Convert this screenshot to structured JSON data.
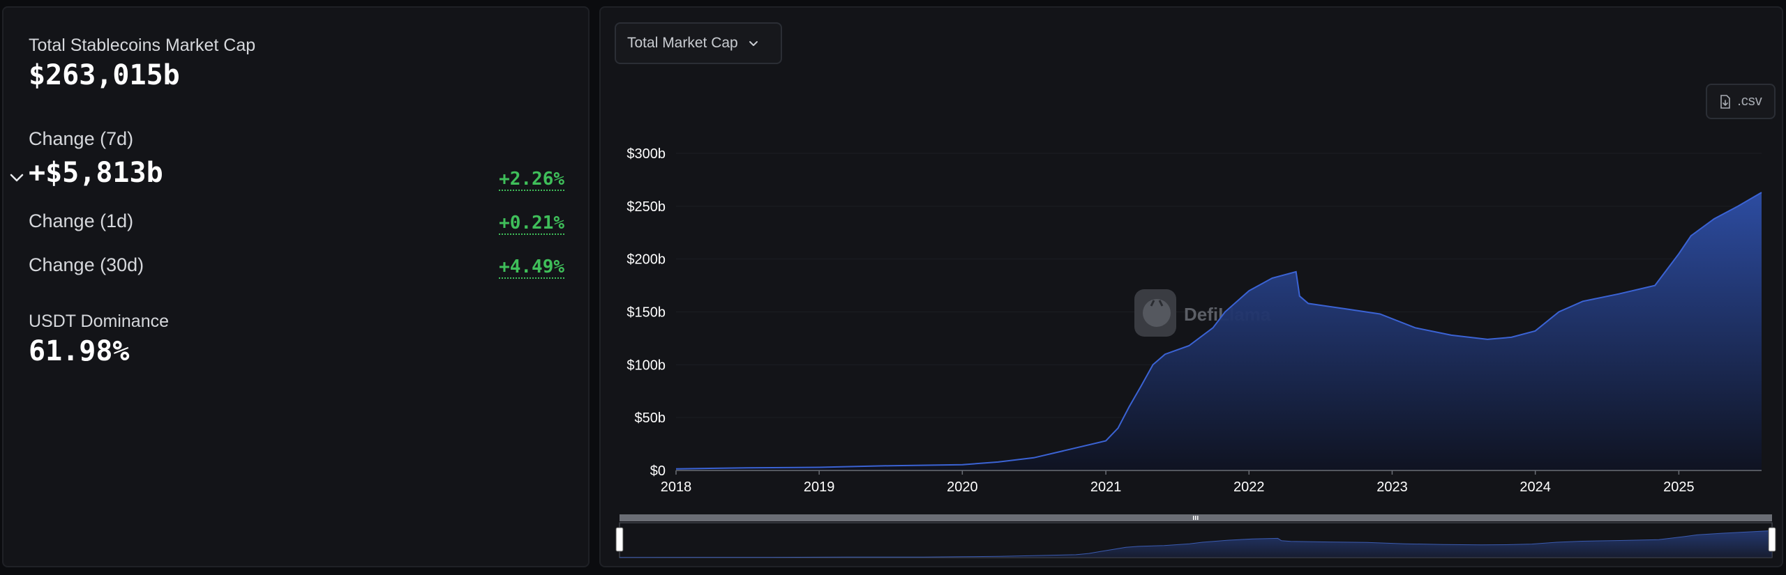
{
  "stats": {
    "total_label": "Total Stablecoins Market Cap",
    "total_value": "$263,015b",
    "change7d_label": "Change (7d)",
    "change7d_value": "+$5,813b",
    "change7d_pct": "+2.26%",
    "change1d_label": "Change (1d)",
    "change1d_pct": "+0.21%",
    "change30d_label": "Change (30d)",
    "change30d_pct": "+4.49%",
    "dominance_label": "USDT Dominance",
    "dominance_value": "61.98%"
  },
  "toolbar": {
    "dropdown_label": "Total Market Cap",
    "csv_label": ".csv"
  },
  "watermark": "DefiLlama",
  "colors": {
    "line": "#3b63d4",
    "positive": "#3fbf5a",
    "panel_bg": "#131418"
  },
  "chart_data": {
    "type": "area",
    "x_start": "2018-01-01",
    "x_end": "2025-07-31",
    "ylim": [
      0,
      300
    ],
    "y_ticks": [
      {
        "v": 0,
        "label": "$0"
      },
      {
        "v": 50,
        "label": "$50b"
      },
      {
        "v": 100,
        "label": "$100b"
      },
      {
        "v": 150,
        "label": "$150b"
      },
      {
        "v": 200,
        "label": "$200b"
      },
      {
        "v": 250,
        "label": "$250b"
      },
      {
        "v": 300,
        "label": "$300b"
      }
    ],
    "x_ticks": [
      "2018",
      "2019",
      "2020",
      "2021",
      "2022",
      "2023",
      "2024",
      "2025"
    ],
    "series": [
      {
        "values_unit": "billion USD",
        "points": [
          [
            "2018-01-01",
            1.5
          ],
          [
            "2018-07-01",
            2.5
          ],
          [
            "2019-01-01",
            3.0
          ],
          [
            "2019-07-01",
            4.5
          ],
          [
            "2020-01-01",
            5.5
          ],
          [
            "2020-04-01",
            8
          ],
          [
            "2020-07-01",
            12
          ],
          [
            "2020-10-01",
            20
          ],
          [
            "2021-01-01",
            28
          ],
          [
            "2021-02-01",
            40
          ],
          [
            "2021-03-01",
            60
          ],
          [
            "2021-04-01",
            80
          ],
          [
            "2021-05-01",
            100
          ],
          [
            "2021-06-01",
            110
          ],
          [
            "2021-08-01",
            118
          ],
          [
            "2021-10-01",
            135
          ],
          [
            "2021-11-01",
            150
          ],
          [
            "2022-01-01",
            170
          ],
          [
            "2022-03-01",
            182
          ],
          [
            "2022-05-01",
            188
          ],
          [
            "2022-05-10",
            165
          ],
          [
            "2022-06-01",
            158
          ],
          [
            "2022-09-01",
            153
          ],
          [
            "2022-12-01",
            148
          ],
          [
            "2023-03-01",
            135
          ],
          [
            "2023-06-01",
            128
          ],
          [
            "2023-09-01",
            124
          ],
          [
            "2023-11-01",
            126
          ],
          [
            "2024-01-01",
            132
          ],
          [
            "2024-03-01",
            150
          ],
          [
            "2024-05-01",
            160
          ],
          [
            "2024-08-01",
            167
          ],
          [
            "2024-11-01",
            175
          ],
          [
            "2025-01-01",
            205
          ],
          [
            "2025-02-01",
            222
          ],
          [
            "2025-04-01",
            238
          ],
          [
            "2025-06-01",
            250
          ],
          [
            "2025-07-31",
            263
          ]
        ]
      }
    ]
  }
}
